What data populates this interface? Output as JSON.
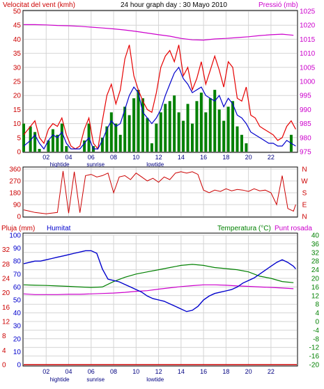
{
  "header": {
    "title": "24 hour graph day : 30 Mayo 2010",
    "wind_label": "Velocitat del vent (kmh)",
    "pressure_label": "Pressió (mb)",
    "rain_label": "Pluja (mm)",
    "humidity_label": "Humitat",
    "temperature_label": "Temperatura (°C)",
    "dewpoint_label": "Punt rosada"
  },
  "colors": {
    "background": "#ffffff",
    "grid": "#d4d4d4",
    "wind_speed": "#e60000",
    "wind_avg": "#0000cc",
    "wind_gust_fill": "#008000",
    "pressure": "#cc00cc",
    "direction": "#cc0000",
    "humidity": "#0000cc",
    "temperature": "#008000",
    "dewpoint": "#cc00cc",
    "rain": "#cc0000",
    "left_axis": "#cc0000",
    "right_axis_top": "#cc00cc",
    "right_axis_bottom": "#008000"
  },
  "chart_data": [
    {
      "type": "line",
      "x_ticks": [
        "02",
        "04",
        "06",
        "08",
        "10",
        "12",
        "14",
        "16",
        "18",
        "20",
        "22"
      ],
      "x_range_hours": [
        0,
        24.3
      ],
      "x_annotations": [
        {
          "label": "hightide",
          "x": 3.2
        },
        {
          "label": "sunrise",
          "x": 6.4
        },
        {
          "label": "lowtide",
          "x": 11.7
        }
      ],
      "y_left": {
        "ticks": [
          0,
          5,
          10,
          15,
          20,
          25,
          30,
          35,
          40,
          45,
          50
        ],
        "range": [
          0,
          50
        ]
      },
      "y_right": {
        "ticks": [
          975,
          980,
          985,
          990,
          995,
          1000,
          1005,
          1010,
          1015,
          1020,
          1025
        ],
        "range": [
          975,
          1025
        ]
      },
      "grid": true,
      "series": [
        {
          "name": "Velocitat del vent (kmh)",
          "axis": "left",
          "x": [
            0,
            0.6,
            1,
            1.4,
            1.8,
            2.2,
            2.6,
            3,
            3.4,
            3.8,
            4.2,
            4.6,
            5,
            5.4,
            5.8,
            6.2,
            6.6,
            7,
            7.4,
            7.8,
            8.2,
            8.6,
            9,
            9.4,
            9.8,
            10.2,
            10.6,
            11,
            11.4,
            11.8,
            12.2,
            12.6,
            13,
            13.4,
            13.8,
            14.2,
            14.6,
            15,
            15.4,
            15.8,
            16.2,
            16.6,
            17,
            17.4,
            17.8,
            18.2,
            18.6,
            19,
            19.4,
            19.8,
            20.2,
            20.6,
            21,
            21.4,
            21.8,
            22.2,
            22.6,
            23,
            23.4,
            23.8,
            24.2
          ],
          "values": [
            6,
            9,
            11,
            5,
            3,
            8,
            10,
            9,
            12,
            6,
            2,
            1,
            2,
            8,
            12,
            3,
            1,
            11,
            20,
            24,
            17,
            22,
            33,
            38,
            27,
            22,
            18,
            15,
            14,
            21,
            30,
            34,
            36,
            32,
            38,
            27,
            30,
            22,
            26,
            32,
            24,
            29,
            34,
            29,
            23,
            32,
            30,
            19,
            18,
            23,
            13,
            12,
            9,
            8,
            7,
            6,
            4,
            5,
            9,
            11,
            8
          ]
        },
        {
          "name": "Wind average",
          "axis": "left",
          "x": [
            0,
            0.6,
            1,
            1.4,
            1.8,
            2.2,
            2.6,
            3,
            3.4,
            3.8,
            4.2,
            4.6,
            5,
            5.4,
            5.8,
            6.2,
            6.6,
            7,
            7.4,
            7.8,
            8.2,
            8.6,
            9,
            9.4,
            9.8,
            10.2,
            10.6,
            11,
            11.4,
            11.8,
            12.2,
            12.6,
            13,
            13.4,
            13.8,
            14.2,
            14.6,
            15,
            15.4,
            15.8,
            16.2,
            16.6,
            17,
            17.4,
            17.8,
            18.2,
            18.6,
            19,
            19.4,
            19.8,
            20.2,
            20.6,
            21,
            21.4,
            21.8,
            22.2,
            22.6,
            23,
            23.4,
            23.8,
            24.2
          ],
          "values": [
            2,
            4,
            6,
            3,
            1,
            4,
            6,
            5,
            7,
            3,
            1,
            1,
            1,
            3,
            5,
            1,
            1,
            4,
            8,
            11,
            9,
            10,
            15,
            20,
            23,
            21,
            14,
            12,
            10,
            12,
            15,
            20,
            24,
            28,
            30,
            26,
            24,
            21,
            22,
            23,
            20,
            19,
            18,
            20,
            16,
            19,
            17,
            13,
            12,
            10,
            7,
            6,
            5,
            4,
            3,
            3,
            2,
            2,
            4,
            3,
            2
          ]
        },
        {
          "name": "Wind gust bars",
          "axis": "left",
          "x": [
            0,
            0.6,
            1,
            1.4,
            1.8,
            2.2,
            2.6,
            3,
            3.4,
            3.8,
            4.2,
            4.6,
            5,
            5.4,
            5.8,
            6.2,
            6.6,
            7,
            7.4,
            7.8,
            8.2,
            8.6,
            9,
            9.4,
            9.8,
            10.2,
            10.6,
            11,
            11.4,
            11.8,
            12.2,
            12.6,
            13,
            13.4,
            13.8,
            14.2,
            14.6,
            15,
            15.4,
            15.8,
            16.2,
            16.6,
            17,
            17.4,
            17.8,
            18.2,
            18.6,
            19,
            19.4,
            19.8,
            20.2,
            20.6,
            21,
            21.4,
            21.8,
            22.2,
            22.6,
            23,
            23.4,
            23.8,
            24.2
          ],
          "values": [
            10,
            9,
            7,
            1,
            0,
            4,
            8,
            6,
            10,
            2,
            0,
            0,
            0,
            4,
            10,
            2,
            0,
            5,
            9,
            14,
            10,
            6,
            16,
            13,
            19,
            22,
            19,
            12,
            3,
            10,
            14,
            17,
            18,
            20,
            14,
            11,
            17,
            10,
            18,
            21,
            14,
            19,
            22,
            15,
            11,
            16,
            18,
            9,
            6,
            3,
            0,
            0,
            0,
            0,
            0,
            0,
            0,
            0,
            0,
            6,
            0
          ]
        },
        {
          "name": "Pressió (mb)",
          "axis": "right",
          "x": [
            0,
            1,
            2,
            3,
            4,
            5,
            6,
            7,
            8,
            9,
            10,
            11,
            12,
            13,
            14,
            15,
            16,
            17,
            18,
            19,
            20,
            21,
            22,
            23,
            24
          ],
          "values": [
            1020.2,
            1020.2,
            1020.1,
            1019.9,
            1019.8,
            1019.6,
            1019.3,
            1019.0,
            1018.7,
            1018.3,
            1017.8,
            1017.2,
            1016.6,
            1016.1,
            1015.3,
            1014.8,
            1014.7,
            1015.1,
            1015.3,
            1015.6,
            1015.9,
            1016.3,
            1016.6,
            1016.8,
            1016.4
          ]
        }
      ]
    },
    {
      "type": "line",
      "x_range_hours": [
        0,
        24.3
      ],
      "y_left": {
        "ticks": [
          0,
          90,
          180,
          270,
          360
        ],
        "range": [
          0,
          360
        ]
      },
      "y_right_labels": [
        "N",
        "W",
        "S",
        "E",
        "N"
      ],
      "grid": true,
      "series": [
        {
          "name": "Wind direction",
          "x": [
            0,
            0.5,
            1,
            1.5,
            2,
            2.5,
            3,
            3.5,
            4,
            4.5,
            5,
            5.5,
            6,
            6.5,
            7,
            7.5,
            8,
            8.5,
            9,
            9.5,
            10,
            10.5,
            11,
            11.5,
            12,
            12.5,
            13,
            13.5,
            14,
            14.5,
            15,
            15.5,
            16,
            16.5,
            17,
            17.5,
            18,
            18.5,
            19,
            19.5,
            20,
            20.5,
            21,
            21.5,
            22,
            22.5,
            23,
            23.5,
            24,
            24.2
          ],
          "values": [
            50,
            40,
            30,
            25,
            20,
            25,
            30,
            345,
            25,
            340,
            28,
            310,
            320,
            300,
            310,
            330,
            180,
            300,
            310,
            280,
            330,
            300,
            270,
            290,
            260,
            300,
            280,
            330,
            340,
            330,
            340,
            320,
            200,
            180,
            200,
            190,
            210,
            195,
            205,
            200,
            190,
            210,
            195,
            200,
            180,
            90,
            310,
            60,
            40,
            90
          ]
        }
      ]
    },
    {
      "type": "line",
      "x_ticks": [
        "02",
        "04",
        "06",
        "08",
        "10",
        "12",
        "14",
        "16",
        "18",
        "20",
        "22"
      ],
      "x_range_hours": [
        0,
        24.3
      ],
      "x_annotations": [
        {
          "label": "hightide",
          "x": 3.2
        },
        {
          "label": "sunrise",
          "x": 6.4
        },
        {
          "label": "lowtide",
          "x": 11.7
        }
      ],
      "y_left_rain": {
        "ticks": [
          0,
          4,
          8,
          12,
          16,
          20,
          24,
          28,
          32
        ],
        "range": [
          0,
          36
        ]
      },
      "y_left_humidity": {
        "ticks": [
          0,
          10,
          20,
          30,
          40,
          50,
          60,
          70,
          80,
          90,
          100
        ],
        "range": [
          0,
          100
        ]
      },
      "y_right": {
        "ticks": [
          -20,
          -16,
          -12,
          -8,
          -4,
          0,
          4,
          8,
          12,
          16,
          20,
          24,
          28,
          32,
          36,
          40
        ],
        "range": [
          -20,
          40
        ]
      },
      "grid": true,
      "series": [
        {
          "name": "Humitat",
          "axis": "humidity",
          "x": [
            0,
            0.5,
            1,
            1.5,
            2,
            2.5,
            3,
            3.5,
            4,
            4.5,
            5,
            5.5,
            6,
            6.5,
            7,
            7.5,
            8,
            8.5,
            9,
            9.5,
            10,
            10.5,
            11,
            11.5,
            12,
            12.5,
            13,
            13.5,
            14,
            14.5,
            15,
            15.5,
            16,
            16.5,
            17,
            17.5,
            18,
            18.5,
            19,
            19.5,
            20,
            20.5,
            21,
            21.5,
            22,
            22.5,
            23,
            23.5,
            24,
            24.2
          ],
          "values": [
            78,
            79,
            80,
            80,
            81,
            82,
            83,
            84,
            85,
            86,
            87,
            88,
            88,
            86,
            74,
            66,
            65,
            64,
            62,
            60,
            58,
            56,
            53,
            51,
            50,
            49,
            47,
            45,
            43,
            41,
            42,
            45,
            50,
            53,
            55,
            56,
            57,
            58,
            60,
            63,
            65,
            67,
            70,
            73,
            76,
            79,
            81,
            79,
            76,
            74
          ]
        },
        {
          "name": "Temperatura (°C)",
          "axis": "right",
          "x": [
            0,
            1,
            2,
            3,
            4,
            5,
            6,
            7,
            8,
            9,
            10,
            11,
            12,
            13,
            14,
            15,
            16,
            17,
            18,
            19,
            20,
            21,
            22,
            23,
            24
          ],
          "values": [
            17.0,
            16.8,
            16.7,
            16.5,
            16.3,
            16.0,
            15.8,
            16.0,
            18.5,
            20.5,
            22.0,
            23.0,
            24.0,
            25.0,
            26.0,
            26.5,
            26.0,
            25.0,
            24.5,
            24.0,
            23.0,
            21.0,
            20.0,
            18.5,
            18.0
          ]
        },
        {
          "name": "Punt rosada",
          "axis": "right",
          "x": [
            0,
            1,
            2,
            3,
            4,
            5,
            6,
            7,
            8,
            9,
            10,
            11,
            12,
            13,
            14,
            15,
            16,
            17,
            18,
            19,
            20,
            21,
            22,
            23,
            24
          ],
          "values": [
            12.8,
            12.5,
            12.5,
            12.5,
            12.6,
            12.6,
            12.8,
            13.0,
            13.2,
            13.5,
            14.0,
            14.3,
            15.0,
            15.6,
            16.2,
            16.6,
            17.0,
            17.0,
            16.8,
            16.5,
            16.3,
            16.0,
            15.8,
            15.5,
            15.2
          ]
        },
        {
          "name": "Pluja (mm)",
          "axis": "rain",
          "x": [
            0,
            24.3
          ],
          "values": [
            0,
            0
          ]
        }
      ]
    }
  ]
}
